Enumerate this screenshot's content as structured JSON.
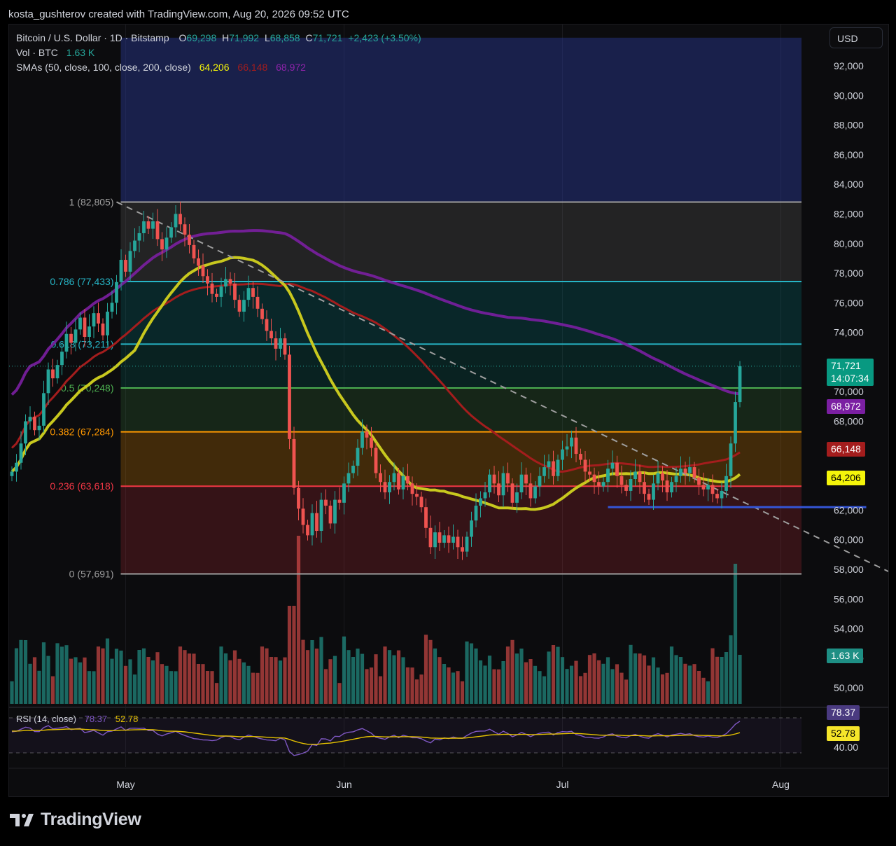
{
  "header": {
    "credit": "kosta_gushterov created with TradingView.com, Aug 20, 2026 09:52 UTC"
  },
  "toolbar": {
    "currency_button": "USD"
  },
  "legend": {
    "symbol": "Bitcoin / U.S. Dollar · 1D · Bitstamp",
    "o_label": "O",
    "o_value": "69,298",
    "h_label": "H",
    "h_value": "71,992",
    "l_label": "L",
    "l_value": "68,858",
    "c_label": "C",
    "c_value": "71,721",
    "change": "+2,423 (+3.50%)",
    "vol_label": "Vol · BTC",
    "vol_value": "1.63 K",
    "sma_label": "SMAs (50, close, 100, close, 200, close)",
    "sma50_value": "64,206",
    "sma100_value": "66,148",
    "sma200_value": "68,972"
  },
  "rsi_legend": {
    "label": "RSI (14, close)",
    "rsi_value": "78.37",
    "ma_value": "52.78"
  },
  "price_labels": {
    "last_price": "71,721",
    "countdown": "14:07:34",
    "sma200": "68,972",
    "sma100": "66,148",
    "sma50": "64,206",
    "volume": "1.63 K",
    "rsi": "78.37",
    "rsi_ma": "52.78"
  },
  "colors": {
    "up": "#26a69a",
    "down": "#ef5350",
    "sma50": "#c8c81e",
    "sma100": "#a41d1d",
    "sma200": "#7b1fa2",
    "rsi": "#7e57c2",
    "rsi_ma": "#e6c200",
    "support": "#3455d6"
  },
  "footer": {
    "brand": "TradingView"
  },
  "chart_data": {
    "type": "candlestick",
    "symbol": "BTCUSD",
    "timeframe": "1D",
    "ylim": [
      48000,
      94000
    ],
    "y_ticks": [
      "92,000",
      "90,000",
      "88,000",
      "86,000",
      "84,000",
      "82,000",
      "80,000",
      "78,000",
      "76,000",
      "74,000",
      "72,000",
      "70,000",
      "68,000",
      "66,000",
      "64,000",
      "62,000",
      "60,000",
      "58,000",
      "56,000",
      "54,000",
      "52,000",
      "50,000"
    ],
    "x_ticks": [
      "May",
      "Jun",
      "Jul",
      "Aug"
    ],
    "x_tick_indices": [
      25,
      73,
      121,
      169
    ],
    "fib_levels": [
      {
        "label": "1 (82,805)",
        "price": 82805,
        "color": "#9e9e9e"
      },
      {
        "label": "0.786 (77,433)",
        "price": 77433,
        "color": "#26b5c6"
      },
      {
        "label": "0.618 (73,211)",
        "price": 73211,
        "color": "#26b5c6"
      },
      {
        "label": "0.5 (70,248)",
        "price": 70248,
        "color": "#4caf50"
      },
      {
        "label": "0.382 (67,284)",
        "price": 67284,
        "color": "#ff9800"
      },
      {
        "label": "0.236 (63,618)",
        "price": 63618,
        "color": "#f23645"
      },
      {
        "label": "0 (57,691)",
        "price": 57691,
        "color": "#9e9e9e"
      }
    ],
    "fib_zones": [
      {
        "from": 82805,
        "to": 93900,
        "color": "rgba(44,62,168,0.40)"
      },
      {
        "from": 77433,
        "to": 82805,
        "color": "rgba(120,120,120,0.22)"
      },
      {
        "from": 73211,
        "to": 77433,
        "color": "rgba(0,150,150,0.20)"
      },
      {
        "from": 70248,
        "to": 73211,
        "color": "rgba(0,140,120,0.18)"
      },
      {
        "from": 67284,
        "to": 70248,
        "color": "rgba(76,175,80,0.16)"
      },
      {
        "from": 63618,
        "to": 67284,
        "color": "rgba(255,152,0,0.22)"
      },
      {
        "from": 57691,
        "to": 63618,
        "color": "rgba(242,54,69,0.18)"
      }
    ],
    "fib_start_index": 23,
    "trendline": {
      "from": [
        23,
        82805
      ],
      "to": [
        203,
        57691
      ]
    },
    "support_line": {
      "from": [
        131,
        62200
      ],
      "to": [
        197,
        62200
      ]
    },
    "closes": [
      64600,
      65200,
      66500,
      68000,
      68300,
      67400,
      67700,
      69900,
      71500,
      70900,
      71800,
      72700,
      73900,
      73300,
      74200,
      75000,
      73700,
      74400,
      75300,
      74600,
      73800,
      75400,
      76000,
      77400,
      78900,
      78100,
      79500,
      80200,
      80700,
      81500,
      81000,
      81500,
      80300,
      79600,
      80400,
      81100,
      82000,
      81300,
      80600,
      79900,
      79000,
      78500,
      77800,
      77300,
      76600,
      76400,
      77100,
      77600,
      77300,
      76200,
      75400,
      76200,
      77000,
      76400,
      75600,
      74900,
      74100,
      73600,
      72900,
      73600,
      72500,
      66800,
      63500,
      62100,
      61000,
      60300,
      61800,
      60600,
      62700,
      62300,
      61100,
      62700,
      62500,
      63800,
      64500,
      65000,
      66200,
      67300,
      66900,
      66200,
      64500,
      63900,
      63200,
      63900,
      64500,
      63400,
      64300,
      63800,
      63100,
      62900,
      62200,
      60800,
      59500,
      60500,
      59800,
      60300,
      59800,
      60200,
      59500,
      59200,
      60200,
      61300,
      62300,
      62800,
      63200,
      64400,
      63800,
      63000,
      64500,
      63800,
      62500,
      63200,
      64400,
      63800,
      62800,
      63600,
      64300,
      64900,
      65300,
      64300,
      65400,
      66100,
      66300,
      66900,
      65800,
      65400,
      64600,
      64400,
      63900,
      63600,
      63900,
      64800,
      65200,
      64300,
      63700,
      63300,
      64100,
      64600,
      63900,
      63100,
      62700,
      63800,
      64500,
      64000,
      63200,
      63900,
      64300,
      64800,
      64500,
      64900,
      64200,
      63700,
      63400,
      63700,
      63100,
      62800,
      63300,
      64300,
      66500,
      69298,
      71721
    ],
    "series": [
      {
        "name": "SMA 50",
        "last": 64206
      },
      {
        "name": "SMA 100",
        "last": 66148
      },
      {
        "name": "SMA 200",
        "last": 68972
      }
    ],
    "rsi_ticks": [
      "40.00"
    ]
  }
}
